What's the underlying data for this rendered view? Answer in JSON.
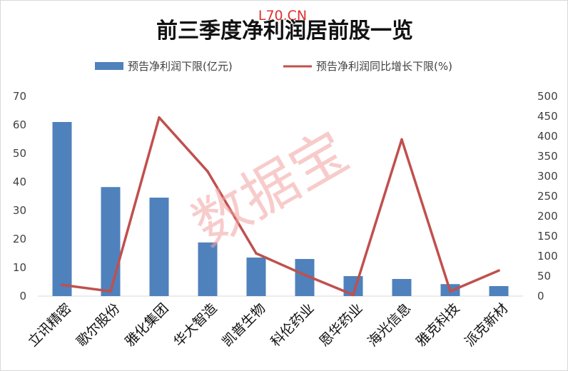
{
  "source_mark": "L70.CN",
  "watermark": "数据宝",
  "chart_data": {
    "type": "bar+line",
    "title": "前三季度净利润居前股一览",
    "categories": [
      "立讯精密",
      "歌尔股份",
      "雅化集团",
      "华大智造",
      "凯普生物",
      "科伦药业",
      "恩华药业",
      "海光信息",
      "雅克科技",
      "派克新材"
    ],
    "series": [
      {
        "name": "预告净利润下限(亿元)",
        "type": "bar",
        "axis": "left",
        "color": "#4f81bd",
        "values": [
          61.0,
          38.2,
          34.5,
          18.8,
          13.5,
          13.0,
          7.0,
          6.0,
          4.2,
          3.5
        ]
      },
      {
        "name": "预告净利润同比增长下限(%)",
        "type": "line",
        "axis": "right",
        "color": "#c0504d",
        "values": [
          28,
          12,
          447,
          312,
          107,
          53,
          3,
          392,
          12,
          64
        ]
      }
    ],
    "y_left": {
      "min": 0,
      "max": 70,
      "ticks": [
        0,
        10,
        20,
        30,
        40,
        50,
        60,
        70
      ]
    },
    "y_right": {
      "min": 0,
      "max": 500,
      "ticks": [
        0,
        50,
        100,
        150,
        200,
        250,
        300,
        350,
        400,
        450,
        500
      ]
    },
    "legend_position": "top",
    "grid": false
  }
}
